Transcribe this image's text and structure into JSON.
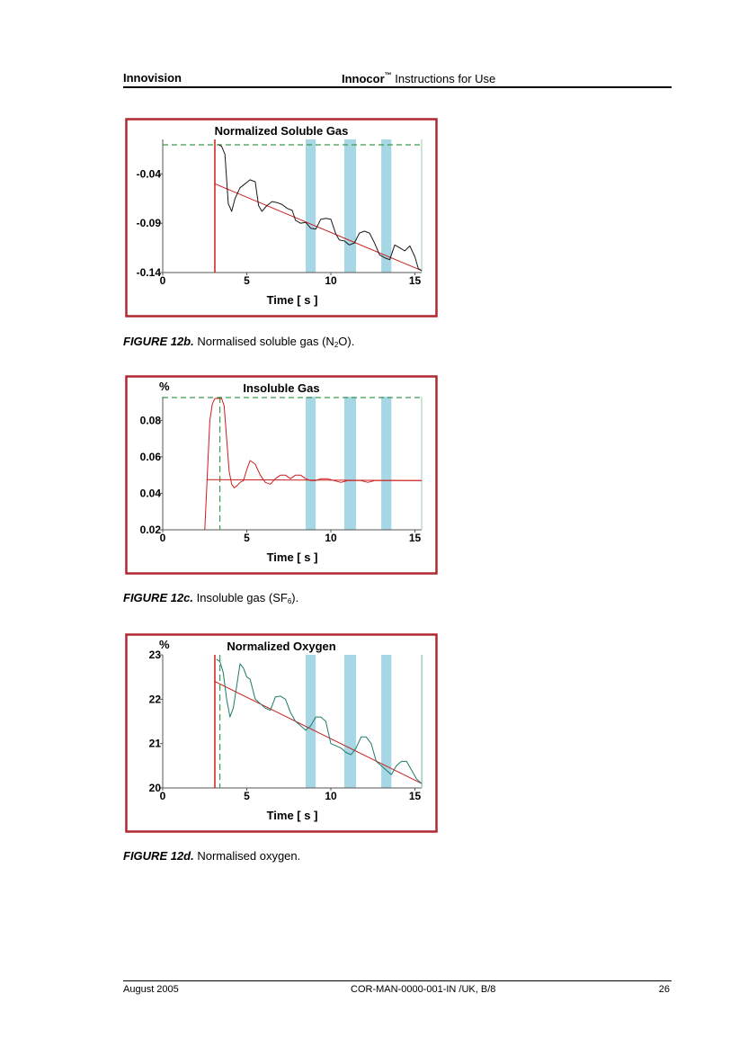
{
  "header": {
    "company": "Innovision",
    "product": "Innocor",
    "trademark": "™",
    "doc_title": " Instructions for Use"
  },
  "footer": {
    "date": "August 2005",
    "doc_ref": "COR-MAN-0000-001-IN /UK, B/8",
    "page_number": "26"
  },
  "figures": [
    {
      "label": "FIGURE 12b.",
      "caption_pre": "  Normalised soluble gas (N",
      "caption_sub": "2",
      "caption_post": "O)."
    },
    {
      "label": "FIGURE 12c.",
      "caption_pre": " Insoluble gas (SF",
      "caption_sub": "6",
      "caption_post": ")."
    },
    {
      "label": "FIGURE 12d.",
      "caption_pre": " Normalised oxygen.",
      "caption_sub": "",
      "caption_post": ""
    }
  ],
  "colors": {
    "frame": "#b02830",
    "trace_red": "#cc1e1e",
    "trace_black": "#1a1a1a",
    "trace_teal": "#1f7a6a",
    "band": "#a7d7e4",
    "dashed_green": "#3e9a4e"
  },
  "chart_data": [
    {
      "type": "line",
      "title": "Normalized Soluble Gas",
      "unit_label": "",
      "xlabel": "Time   [ s ]",
      "xlim": [
        0,
        15.4
      ],
      "ylim": [
        -0.14,
        -0.005
      ],
      "xticks": [
        "0",
        "5",
        "10",
        "15"
      ],
      "yticks": [
        {
          "v": -0.04,
          "t": "-0.04"
        },
        {
          "v": -0.09,
          "t": "-0.09"
        },
        {
          "v": -0.14,
          "t": "-0.14"
        }
      ],
      "bands": [
        [
          8.5,
          9.1
        ],
        [
          10.8,
          11.5
        ],
        [
          13.0,
          13.6
        ]
      ],
      "vline_solid_x": 3.1,
      "vline_dashed_x": null,
      "hline_dashed_y": -0.0105,
      "fit_line": {
        "x": [
          3.1,
          15.4
        ],
        "y": [
          -0.05,
          -0.138
        ]
      },
      "series": [
        {
          "color_key": "trace_black",
          "x": [
            3.3,
            3.5,
            3.7,
            3.9,
            4.1,
            4.3,
            4.6,
            4.9,
            5.2,
            5.5,
            5.7,
            5.9,
            6.2,
            6.5,
            6.8,
            7.1,
            7.4,
            7.7,
            7.9,
            8.2,
            8.5,
            8.8,
            9.1,
            9.4,
            9.7,
            10.0,
            10.3,
            10.5,
            10.8,
            11.1,
            11.4,
            11.7,
            12.0,
            12.3,
            12.6,
            12.9,
            13.2,
            13.5,
            13.8,
            14.1,
            14.4,
            14.7,
            15.0,
            15.2,
            15.4
          ],
          "y": [
            -0.01,
            -0.012,
            -0.02,
            -0.07,
            -0.078,
            -0.065,
            -0.054,
            -0.05,
            -0.046,
            -0.048,
            -0.072,
            -0.078,
            -0.072,
            -0.068,
            -0.069,
            -0.071,
            -0.075,
            -0.077,
            -0.087,
            -0.09,
            -0.089,
            -0.095,
            -0.096,
            -0.086,
            -0.085,
            -0.086,
            -0.101,
            -0.107,
            -0.108,
            -0.112,
            -0.11,
            -0.1,
            -0.098,
            -0.1,
            -0.11,
            -0.122,
            -0.125,
            -0.127,
            -0.112,
            -0.115,
            -0.118,
            -0.113,
            -0.124,
            -0.136,
            -0.138
          ]
        }
      ]
    },
    {
      "type": "line",
      "title": "Insoluble Gas",
      "unit_label": "%",
      "xlabel": "Time   [ s ]",
      "xlim": [
        0,
        15.4
      ],
      "ylim": [
        0.02,
        0.093
      ],
      "xticks": [
        "0",
        "5",
        "10",
        "15"
      ],
      "yticks": [
        {
          "v": 0.08,
          "t": "0.08"
        },
        {
          "v": 0.06,
          "t": "0.06"
        },
        {
          "v": 0.04,
          "t": "0.04"
        },
        {
          "v": 0.02,
          "t": "0.02"
        }
      ],
      "bands": [
        [
          8.5,
          9.1
        ],
        [
          10.8,
          11.5
        ],
        [
          13.0,
          13.6
        ]
      ],
      "vline_solid_x": null,
      "vline_dashed_x": 3.4,
      "hline_dashed_y": 0.0925,
      "fit_line": {
        "x": [
          2.6,
          15.4
        ],
        "y": [
          0.0475,
          0.047
        ]
      },
      "series": [
        {
          "color_key": "trace_red",
          "x": [
            2.5,
            2.65,
            2.8,
            2.95,
            3.1,
            3.3,
            3.5,
            3.65,
            3.8,
            3.95,
            4.1,
            4.25,
            4.4,
            4.6,
            4.8,
            5.0,
            5.2,
            5.5,
            5.8,
            6.1,
            6.4,
            6.7,
            7.0,
            7.3,
            7.6,
            7.9,
            8.2,
            8.5,
            8.8,
            9.1,
            9.4,
            9.8,
            10.2,
            10.6,
            11.0,
            11.4,
            11.8,
            12.2,
            12.6,
            13.0,
            13.4,
            13.8,
            14.2,
            14.6,
            15.0,
            15.4
          ],
          "y": [
            0.02,
            0.05,
            0.08,
            0.089,
            0.092,
            0.092,
            0.092,
            0.088,
            0.07,
            0.052,
            0.045,
            0.043,
            0.044,
            0.046,
            0.047,
            0.053,
            0.058,
            0.056,
            0.05,
            0.046,
            0.045,
            0.048,
            0.05,
            0.05,
            0.048,
            0.05,
            0.05,
            0.048,
            0.047,
            0.047,
            0.048,
            0.048,
            0.047,
            0.046,
            0.047,
            0.047,
            0.047,
            0.046,
            0.047,
            0.047,
            0.047,
            0.047,
            0.047,
            0.047,
            0.047,
            0.047
          ]
        }
      ]
    },
    {
      "type": "line",
      "title": "Normalized Oxygen",
      "unit_label": "%",
      "xlabel": "Time   [ s ]",
      "xlim": [
        0,
        15.4
      ],
      "ylim": [
        20,
        23
      ],
      "xticks": [
        "0",
        "5",
        "10",
        "15"
      ],
      "yticks": [
        {
          "v": 23,
          "t": "23"
        },
        {
          "v": 22,
          "t": "22"
        },
        {
          "v": 21,
          "t": "21"
        },
        {
          "v": 20,
          "t": "20"
        }
      ],
      "bands": [
        [
          8.5,
          9.1
        ],
        [
          10.8,
          11.5
        ],
        [
          13.0,
          13.6
        ],
        [
          15.38,
          15.45
        ]
      ],
      "vline_solid_x": 3.1,
      "vline_dashed_x": 3.4,
      "hline_dashed_y": null,
      "fit_line": {
        "x": [
          3.1,
          15.4
        ],
        "y": [
          22.4,
          20.1
        ]
      },
      "series": [
        {
          "color_key": "trace_teal",
          "x": [
            3.2,
            3.4,
            3.6,
            3.8,
            4.0,
            4.2,
            4.4,
            4.6,
            4.8,
            5.0,
            5.2,
            5.5,
            5.8,
            6.1,
            6.4,
            6.7,
            7.0,
            7.3,
            7.6,
            7.9,
            8.2,
            8.5,
            8.8,
            9.1,
            9.4,
            9.7,
            10.0,
            10.3,
            10.6,
            10.9,
            11.2,
            11.5,
            11.8,
            12.1,
            12.4,
            12.7,
            13.0,
            13.3,
            13.6,
            13.9,
            14.2,
            14.5,
            14.8,
            15.1,
            15.4
          ],
          "y": [
            22.9,
            22.85,
            22.6,
            22.0,
            21.6,
            21.8,
            22.3,
            22.8,
            22.7,
            22.5,
            22.45,
            22.0,
            21.9,
            21.8,
            21.75,
            22.05,
            22.07,
            22.0,
            21.7,
            21.5,
            21.4,
            21.3,
            21.4,
            21.6,
            21.6,
            21.5,
            21.0,
            20.95,
            20.9,
            20.8,
            20.75,
            20.9,
            21.15,
            21.15,
            21.0,
            20.6,
            20.5,
            20.4,
            20.3,
            20.5,
            20.6,
            20.6,
            20.4,
            20.2,
            20.1
          ]
        }
      ]
    }
  ]
}
